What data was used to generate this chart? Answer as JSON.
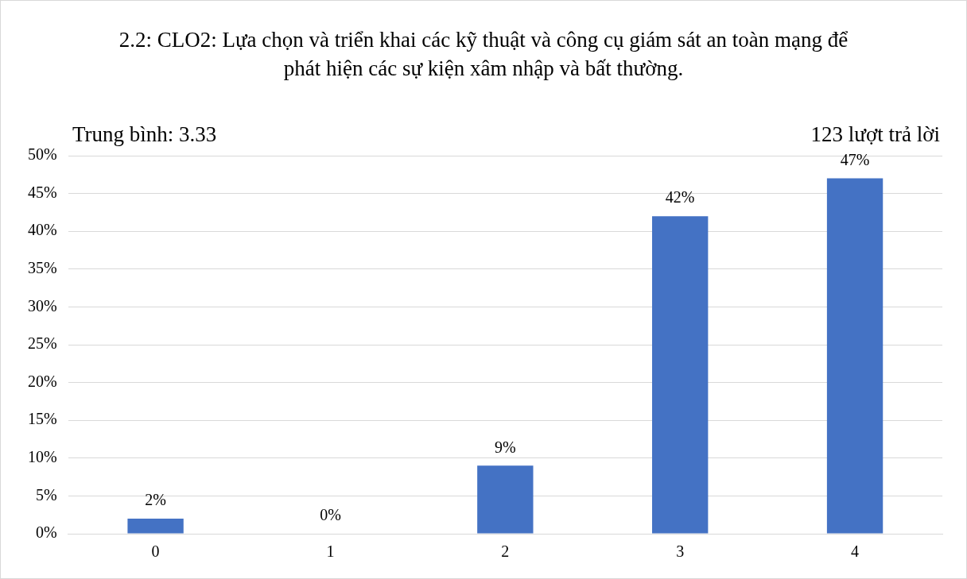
{
  "chart_data": {
    "type": "bar",
    "title": "2.2: CLO2: Lựa chọn và triển khai các kỹ thuật và công cụ giám sát an toàn mạng để phát hiện các sự kiện xâm nhập và bất thường.",
    "annotations": [
      "Trung bình: 3.33",
      "123 lượt trả lời"
    ],
    "categories": [
      "0",
      "1",
      "2",
      "3",
      "4"
    ],
    "values": [
      2,
      0,
      9,
      42,
      47
    ],
    "value_labels": [
      "2%",
      "0%",
      "9%",
      "42%",
      "47%"
    ],
    "color": "#4472c4",
    "ylim": [
      0,
      50
    ],
    "yticks": [
      {
        "value": 0,
        "label": "0%"
      },
      {
        "value": 5,
        "label": "5%"
      },
      {
        "value": 10,
        "label": "10%"
      },
      {
        "value": 15,
        "label": "15%"
      },
      {
        "value": 20,
        "label": "20%"
      },
      {
        "value": 25,
        "label": "25%"
      },
      {
        "value": 30,
        "label": "30%"
      },
      {
        "value": 35,
        "label": "35%"
      },
      {
        "value": 40,
        "label": "40%"
      },
      {
        "value": 45,
        "label": "45%"
      },
      {
        "value": 50,
        "label": "50%"
      }
    ],
    "grid": "y"
  }
}
